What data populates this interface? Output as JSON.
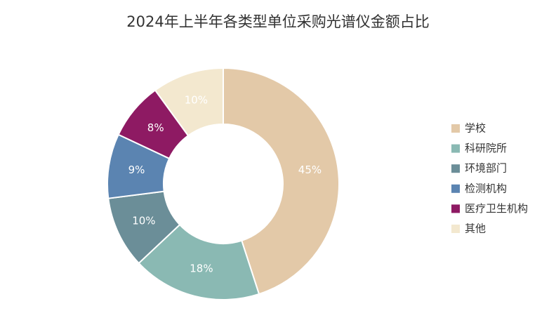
{
  "chart_data": {
    "type": "donut",
    "title": "2024年上半年各类型单位采购光谱仪金额占比",
    "categories": [
      "学校",
      "科研院所",
      "环境部门",
      "检测机构",
      "医疗卫生机构",
      "其他"
    ],
    "values": [
      45,
      18,
      10,
      9,
      8,
      10
    ],
    "value_labels": [
      "45%",
      "18%",
      "10%",
      "9%",
      "8%",
      "10%"
    ],
    "colors": [
      "#e3c9a8",
      "#8ab9b3",
      "#6b8e98",
      "#5b84b1",
      "#8e1a63",
      "#f3e8cf"
    ],
    "legend": "right"
  }
}
